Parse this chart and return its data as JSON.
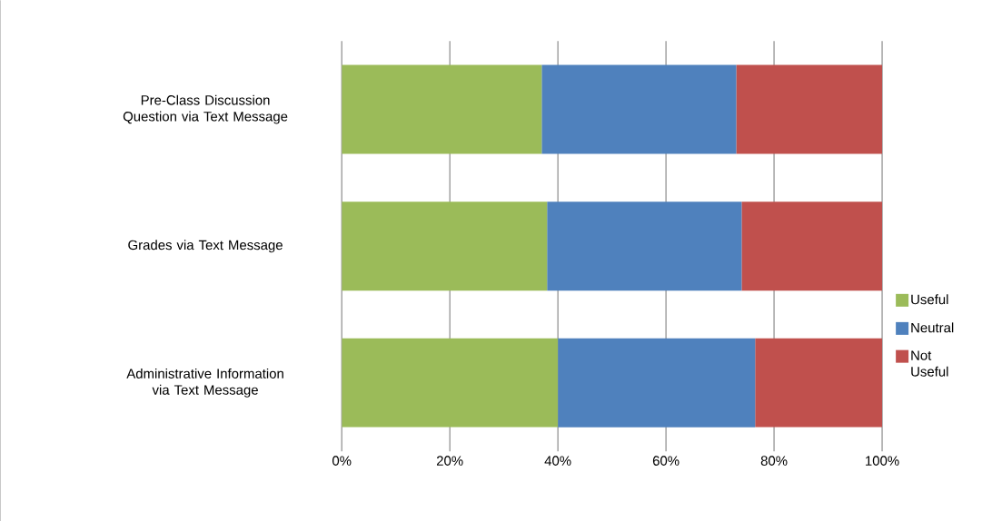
{
  "chart_data": {
    "type": "bar",
    "orientation": "horizontal",
    "stacked": true,
    "categories": [
      "Pre-Class Discussion Question via Text Message",
      "Grades via Text Message",
      "Administrative Information via Text Message"
    ],
    "series": [
      {
        "name": "Useful",
        "color": "#9bbb59",
        "values": [
          37,
          38,
          40
        ]
      },
      {
        "name": "Neutral",
        "color": "#4f81bd",
        "values": [
          36,
          36,
          36.5
        ]
      },
      {
        "name": "Not Useful",
        "color": "#c0504d",
        "values": [
          27,
          26,
          23.5
        ]
      }
    ],
    "xlim": [
      0,
      100
    ],
    "xticks": [
      {
        "value": 0,
        "label": "0%"
      },
      {
        "value": 20,
        "label": "20%"
      },
      {
        "value": 40,
        "label": "40%"
      },
      {
        "value": 60,
        "label": "60%"
      },
      {
        "value": 80,
        "label": "80%"
      },
      {
        "value": 100,
        "label": "100%"
      }
    ],
    "grid": "x",
    "legend": "right"
  }
}
